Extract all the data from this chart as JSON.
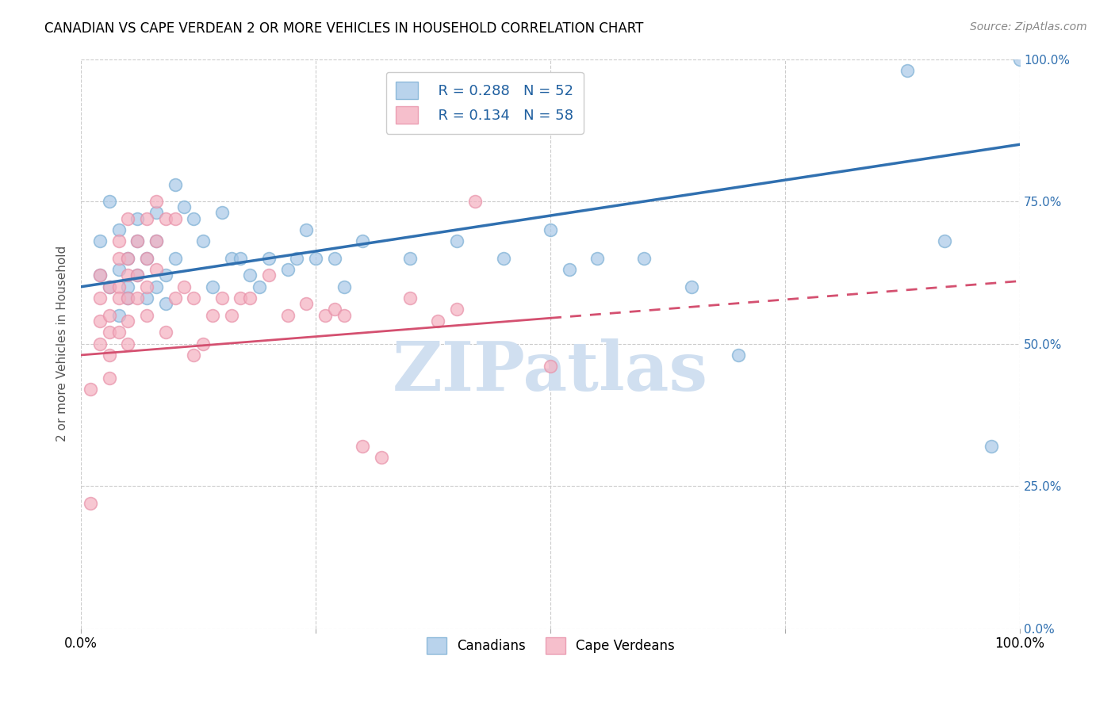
{
  "title": "CANADIAN VS CAPE VERDEAN 2 OR MORE VEHICLES IN HOUSEHOLD CORRELATION CHART",
  "source": "Source: ZipAtlas.com",
  "ylabel": "2 or more Vehicles in Household",
  "ytick_labels": [
    "0.0%",
    "25.0%",
    "50.0%",
    "75.0%",
    "100.0%"
  ],
  "ytick_values": [
    0.0,
    0.25,
    0.5,
    0.75,
    1.0
  ],
  "R_canadian": 0.288,
  "N_canadian": 52,
  "R_capeverdean": 0.134,
  "N_capeverdean": 58,
  "blue_color": "#a8c8e8",
  "blue_edge_color": "#7bafd4",
  "blue_line_color": "#3070b0",
  "pink_color": "#f4b0c0",
  "pink_edge_color": "#e890a8",
  "pink_line_color": "#d45070",
  "watermark": "ZIPatlas",
  "watermark_color": "#d0dff0",
  "canadian_x": [
    0.02,
    0.02,
    0.03,
    0.03,
    0.04,
    0.04,
    0.04,
    0.05,
    0.05,
    0.05,
    0.06,
    0.06,
    0.06,
    0.07,
    0.07,
    0.08,
    0.08,
    0.08,
    0.09,
    0.09,
    0.1,
    0.1,
    0.11,
    0.12,
    0.13,
    0.14,
    0.15,
    0.16,
    0.17,
    0.18,
    0.19,
    0.2,
    0.22,
    0.23,
    0.24,
    0.25,
    0.27,
    0.28,
    0.3,
    0.35,
    0.4,
    0.45,
    0.5,
    0.52,
    0.55,
    0.6,
    0.65,
    0.7,
    0.88,
    0.92,
    0.97,
    1.0
  ],
  "canadian_y": [
    0.62,
    0.68,
    0.6,
    0.75,
    0.55,
    0.63,
    0.7,
    0.6,
    0.65,
    0.58,
    0.62,
    0.68,
    0.72,
    0.58,
    0.65,
    0.6,
    0.68,
    0.73,
    0.62,
    0.57,
    0.65,
    0.78,
    0.74,
    0.72,
    0.68,
    0.6,
    0.73,
    0.65,
    0.65,
    0.62,
    0.6,
    0.65,
    0.63,
    0.65,
    0.7,
    0.65,
    0.65,
    0.6,
    0.68,
    0.65,
    0.68,
    0.65,
    0.7,
    0.63,
    0.65,
    0.65,
    0.6,
    0.48,
    0.98,
    0.68,
    0.32,
    1.0
  ],
  "capeverdean_x": [
    0.01,
    0.01,
    0.02,
    0.02,
    0.02,
    0.02,
    0.03,
    0.03,
    0.03,
    0.03,
    0.03,
    0.04,
    0.04,
    0.04,
    0.04,
    0.04,
    0.05,
    0.05,
    0.05,
    0.05,
    0.05,
    0.05,
    0.06,
    0.06,
    0.06,
    0.07,
    0.07,
    0.07,
    0.07,
    0.08,
    0.08,
    0.08,
    0.09,
    0.09,
    0.1,
    0.1,
    0.11,
    0.12,
    0.12,
    0.13,
    0.14,
    0.15,
    0.16,
    0.17,
    0.18,
    0.2,
    0.22,
    0.24,
    0.26,
    0.27,
    0.28,
    0.3,
    0.32,
    0.35,
    0.38,
    0.4,
    0.42,
    0.5
  ],
  "capeverdean_y": [
    0.42,
    0.22,
    0.54,
    0.5,
    0.58,
    0.62,
    0.6,
    0.55,
    0.52,
    0.48,
    0.44,
    0.65,
    0.6,
    0.58,
    0.52,
    0.68,
    0.72,
    0.65,
    0.62,
    0.58,
    0.54,
    0.5,
    0.68,
    0.62,
    0.58,
    0.72,
    0.65,
    0.6,
    0.55,
    0.75,
    0.68,
    0.63,
    0.72,
    0.52,
    0.72,
    0.58,
    0.6,
    0.48,
    0.58,
    0.5,
    0.55,
    0.58,
    0.55,
    0.58,
    0.58,
    0.62,
    0.55,
    0.57,
    0.55,
    0.56,
    0.55,
    0.32,
    0.3,
    0.58,
    0.54,
    0.56,
    0.75,
    0.46
  ]
}
